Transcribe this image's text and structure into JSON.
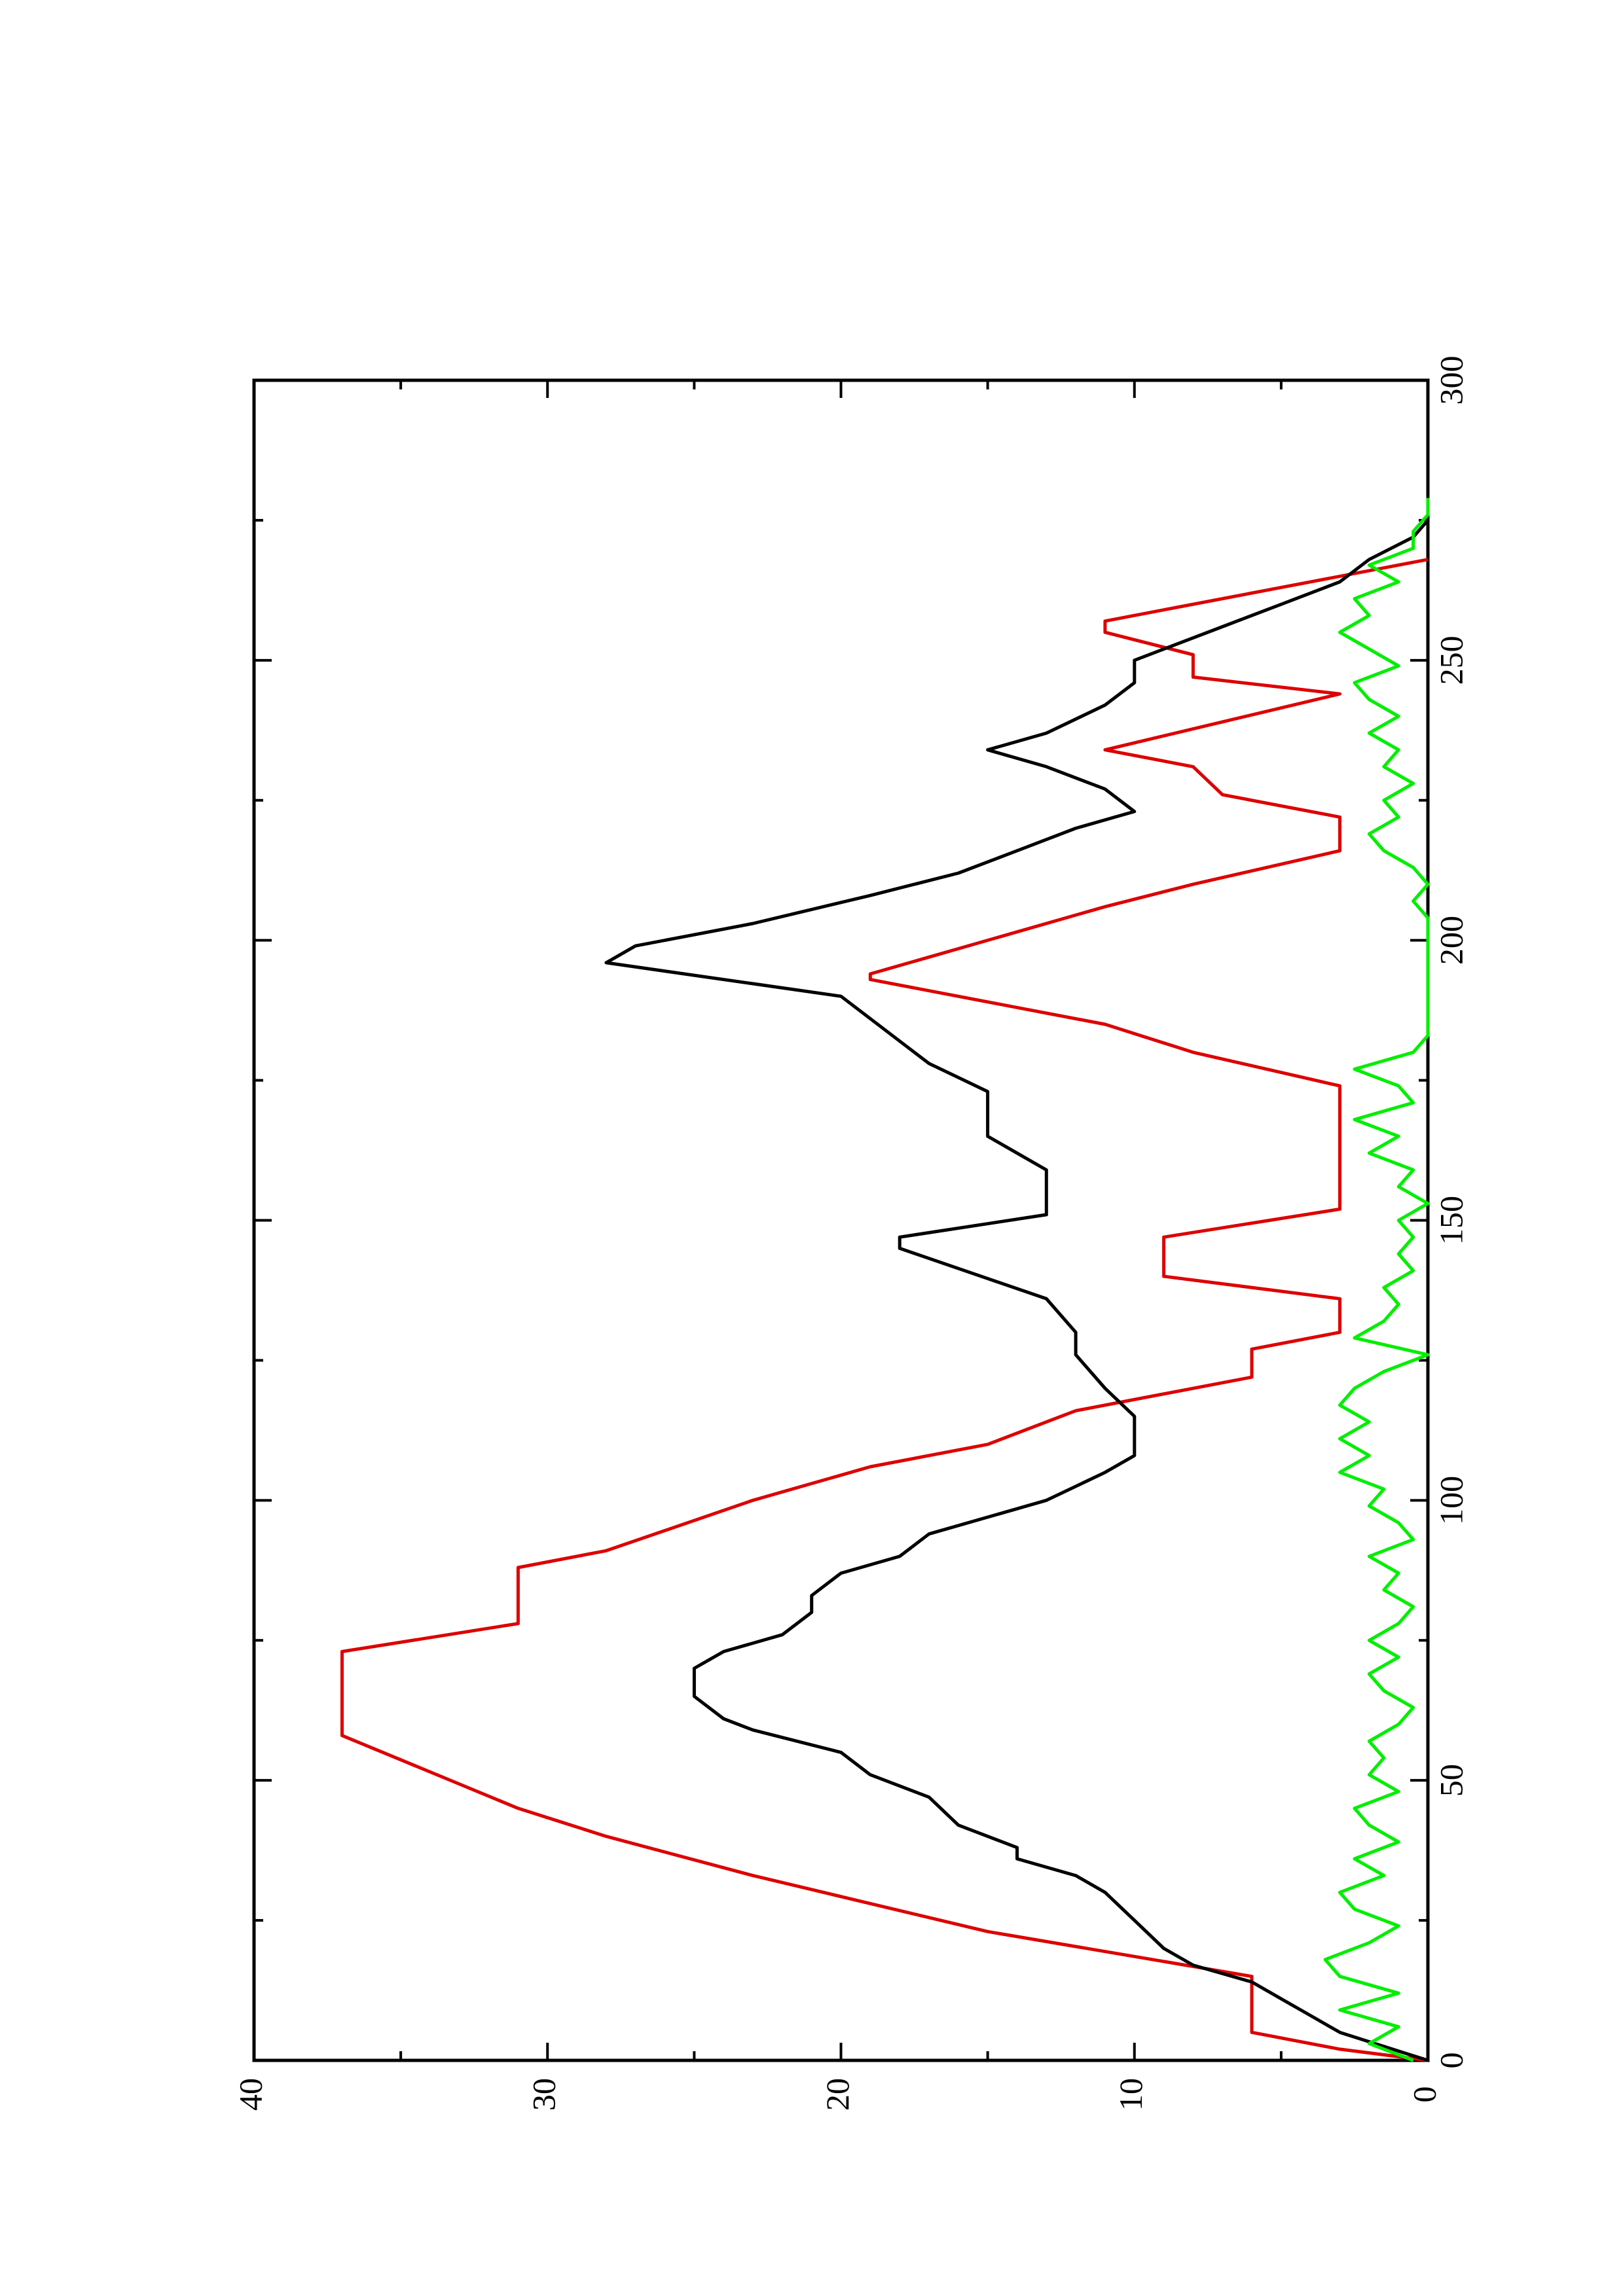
{
  "chart_data": {
    "type": "line",
    "xlim": [
      0,
      300
    ],
    "xticks": [
      0,
      50,
      100,
      150,
      200,
      250,
      300
    ],
    "xminorticks": [
      25,
      75,
      125,
      175,
      225,
      275
    ],
    "ylim": [
      0,
      40
    ],
    "yticks": [
      0,
      10,
      20,
      30,
      40
    ],
    "yminorticks": [
      5,
      15,
      25,
      35
    ],
    "rotated": true,
    "series": [
      {
        "color": "#dd0000",
        "x": [
          0,
          2,
          5,
          15,
          23,
          28,
          33,
          40,
          45,
          58,
          73,
          78,
          88,
          91,
          100,
          106,
          110,
          116,
          122,
          127,
          130,
          136,
          140,
          147,
          152,
          174,
          180,
          185,
          193,
          194,
          206,
          210,
          216,
          222,
          226,
          231,
          234,
          244,
          247,
          251,
          255,
          257,
          268
        ],
        "values": [
          0,
          3,
          6,
          6,
          15,
          19,
          23,
          28,
          31,
          37,
          37,
          31,
          31,
          28,
          23,
          19,
          15,
          12,
          6,
          6,
          3,
          3,
          9,
          9,
          3,
          3,
          8,
          11,
          19,
          19,
          11,
          8,
          3,
          3,
          7,
          8,
          11,
          3,
          8,
          8,
          11,
          11,
          0
        ]
      },
      {
        "color": "#000000",
        "x": [
          0,
          5,
          8,
          11,
          14,
          17,
          20,
          25,
          30,
          33,
          36,
          38,
          42,
          47,
          51,
          55,
          59,
          61,
          65,
          70,
          73,
          76,
          80,
          83,
          87,
          90,
          94,
          97,
          100,
          105,
          108,
          111,
          115,
          120,
          126,
          130,
          136,
          145,
          147,
          151,
          159,
          162,
          165,
          170,
          173,
          178,
          182,
          190,
          196,
          199,
          203,
          208,
          212,
          216,
          220,
          223,
          227,
          231,
          234,
          237,
          242,
          246,
          250,
          252,
          256,
          260,
          264,
          268,
          272,
          275,
          280
        ],
        "values": [
          0,
          3,
          4,
          5,
          6,
          8,
          9,
          10,
          11,
          12,
          14,
          14,
          16,
          17,
          19,
          20,
          23,
          24,
          25,
          25,
          24,
          22,
          21,
          21,
          20,
          18,
          17,
          15,
          13,
          11,
          10,
          10,
          10,
          11,
          12,
          12,
          13,
          18,
          18,
          13,
          13,
          14,
          15,
          15,
          15,
          17,
          18,
          20,
          28,
          27,
          23,
          19,
          16,
          14,
          12,
          10,
          11,
          13,
          15,
          13,
          11,
          10,
          10,
          9,
          7,
          5,
          3,
          2,
          0.5,
          0,
          0
        ]
      },
      {
        "color": "#00ee00",
        "x": [
          0,
          3,
          6,
          9,
          12,
          15,
          18,
          21,
          24,
          27,
          30,
          33,
          36,
          39,
          42,
          45,
          48,
          51,
          54,
          57,
          60,
          63,
          66,
          69,
          72,
          75,
          78,
          81,
          84,
          87,
          90,
          93,
          96,
          99,
          102,
          105,
          108,
          111,
          114,
          117,
          120,
          123,
          126,
          129,
          132,
          135,
          138,
          141,
          144,
          147,
          150,
          153,
          156,
          159,
          162,
          165,
          168,
          171,
          174,
          177,
          180,
          183,
          186,
          189,
          192,
          195,
          198,
          201,
          204,
          207,
          210,
          213,
          216,
          219,
          222,
          225,
          228,
          231,
          234,
          237,
          240,
          243,
          246,
          249,
          252,
          255,
          258,
          261,
          264,
          267,
          270,
          273,
          276,
          279
        ],
        "values": [
          0.5,
          2,
          1,
          3,
          1,
          3,
          3.5,
          2,
          1,
          2.5,
          3,
          1.5,
          2.5,
          1,
          2,
          2.5,
          1,
          2,
          1.5,
          2,
          1,
          0.5,
          1.5,
          2,
          1,
          2,
          1,
          0.5,
          1.5,
          1,
          2,
          0.5,
          1,
          2,
          1.5,
          3,
          2,
          3,
          2,
          3,
          2.5,
          1.5,
          0,
          2.5,
          1.5,
          1,
          1.5,
          0.5,
          1,
          0.5,
          1,
          0,
          1,
          0.5,
          2,
          1,
          2.5,
          0.5,
          1,
          2.5,
          0.5,
          0,
          0,
          0,
          0,
          0,
          0,
          0,
          0,
          0.5,
          0,
          0.5,
          1.5,
          2,
          1,
          1.5,
          0.5,
          1.5,
          1,
          2,
          1,
          2,
          2.5,
          1,
          2,
          3,
          2,
          2.5,
          1,
          2,
          0.5,
          0.5,
          0,
          0
        ]
      }
    ]
  }
}
